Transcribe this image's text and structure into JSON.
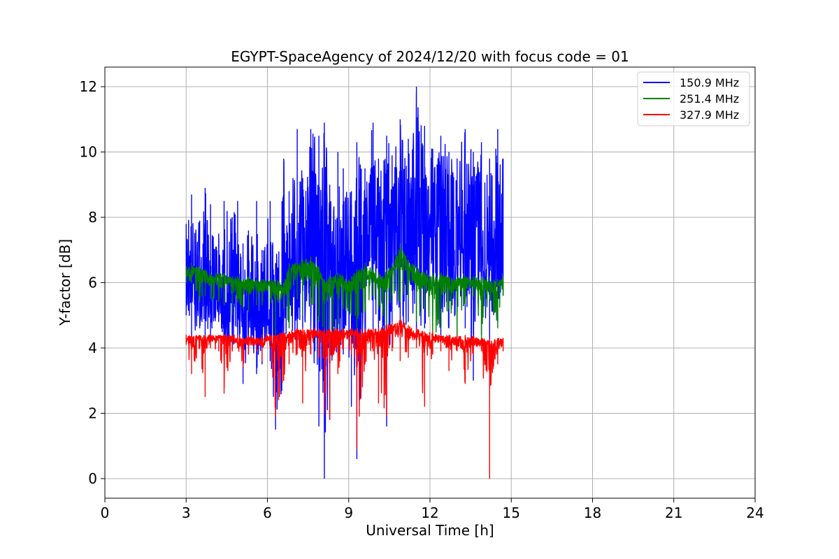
{
  "chart_data": {
    "type": "line",
    "title": "EGYPT-SpaceAgency of 2024/12/20 with focus code = 01",
    "xlabel": "Universal Time [h]",
    "ylabel": "Y-factor [dB]",
    "xlim": [
      0,
      24
    ],
    "ylim": [
      -0.6,
      12.6
    ],
    "xticks": [
      0,
      3,
      6,
      9,
      12,
      15,
      18,
      21,
      24
    ],
    "yticks": [
      0,
      2,
      4,
      6,
      8,
      10,
      12
    ],
    "grid": true,
    "legend_position": "top-right",
    "series": [
      {
        "name": "150.9 MHz",
        "color": "#0000ff",
        "x": [
          3.0,
          3.2,
          3.5,
          3.7,
          3.9,
          4.2,
          4.4,
          4.7,
          4.9,
          5.1,
          5.3,
          5.6,
          5.8,
          6.1,
          6.3,
          6.6,
          6.8,
          7.1,
          7.3,
          7.6,
          7.9,
          8.1,
          8.3,
          8.6,
          8.8,
          9.1,
          9.3,
          9.6,
          9.9,
          10.1,
          10.4,
          10.6,
          10.9,
          11.2,
          11.5,
          11.8,
          12.1,
          12.4,
          12.7,
          13.0,
          13.3,
          13.6,
          13.9,
          14.2,
          14.5,
          14.7
        ],
        "lower": [
          5.0,
          4.0,
          4.6,
          4.0,
          4.4,
          4.8,
          3.6,
          3.9,
          4.3,
          2.9,
          3.8,
          3.2,
          3.5,
          3.6,
          1.5,
          3.0,
          4.8,
          4.0,
          4.6,
          3.8,
          1.6,
          0.0,
          1.8,
          4.2,
          3.8,
          2.2,
          0.6,
          4.0,
          4.4,
          4.2,
          1.6,
          4.6,
          4.2,
          4.8,
          4.4,
          4.6,
          5.0,
          4.2,
          4.6,
          4.2,
          4.6,
          3.0,
          4.4,
          4.0,
          4.8,
          5.6
        ],
        "upper": [
          7.8,
          8.7,
          7.9,
          8.9,
          8.4,
          7.5,
          8.5,
          8.0,
          8.5,
          7.2,
          7.6,
          8.5,
          7.0,
          8.5,
          6.6,
          9.8,
          8.8,
          10.7,
          9.2,
          10.7,
          10.5,
          10.9,
          9.0,
          10.0,
          9.5,
          8.8,
          10.3,
          9.5,
          10.9,
          9.8,
          10.5,
          9.9,
          11.0,
          10.4,
          12.0,
          10.8,
          10.1,
          10.5,
          10.0,
          9.8,
          10.7,
          10.0,
          10.3,
          9.8,
          10.7,
          9.8
        ],
        "level": [
          6.2,
          6.0,
          5.9,
          5.7,
          5.6,
          5.7,
          5.6,
          5.5,
          5.4,
          5.2,
          5.2,
          5.1,
          5.2,
          5.1,
          5.3,
          5.4,
          6.2,
          6.8,
          6.9,
          7.2,
          7.0,
          7.3,
          6.8,
          6.6,
          6.5,
          6.4,
          7.2,
          7.4,
          7.6,
          7.6,
          7.8,
          7.7,
          7.6,
          7.9,
          7.8,
          7.7,
          7.6,
          7.5,
          7.4,
          7.3,
          7.2,
          7.0,
          7.1,
          6.9,
          7.0,
          7.1
        ]
      },
      {
        "name": "251.4 MHz",
        "color": "#008000",
        "x": [
          3.0,
          3.2,
          3.5,
          3.7,
          3.9,
          4.2,
          4.4,
          4.7,
          4.9,
          5.1,
          5.3,
          5.6,
          5.8,
          6.1,
          6.3,
          6.6,
          6.8,
          7.1,
          7.3,
          7.6,
          7.9,
          8.1,
          8.3,
          8.6,
          8.8,
          9.1,
          9.3,
          9.6,
          9.9,
          10.1,
          10.4,
          10.6,
          10.9,
          11.2,
          11.5,
          11.8,
          12.1,
          12.4,
          12.7,
          13.0,
          13.3,
          13.6,
          13.9,
          14.2,
          14.5,
          14.7
        ],
        "lower": [
          6.0,
          6.0,
          5.4,
          5.6,
          5.5,
          5.4,
          5.3,
          5.0,
          5.4,
          5.2,
          5.1,
          5.3,
          5.3,
          5.5,
          4.3,
          5.2,
          4.6,
          5.5,
          5.0,
          5.3,
          4.8,
          4.3,
          4.4,
          4.3,
          5.2,
          5.0,
          4.6,
          5.1,
          5.6,
          5.2,
          4.5,
          5.6,
          5.4,
          5.5,
          4.8,
          5.2,
          4.4,
          4.6,
          5.2,
          4.4,
          5.3,
          5.6,
          4.3,
          5.5,
          4.6,
          5.6
        ],
        "upper": [
          6.5,
          6.6,
          6.5,
          6.4,
          6.3,
          6.3,
          6.3,
          6.2,
          6.2,
          6.1,
          6.2,
          6.1,
          6.1,
          6.1,
          6.1,
          6.0,
          6.6,
          6.6,
          6.7,
          6.8,
          6.5,
          6.1,
          6.2,
          6.3,
          6.2,
          6.2,
          6.4,
          6.6,
          6.4,
          6.3,
          6.4,
          6.6,
          7.2,
          6.7,
          6.5,
          6.3,
          6.3,
          6.3,
          6.2,
          6.2,
          6.2,
          6.2,
          6.2,
          6.2,
          6.1,
          6.2
        ],
        "level": [
          6.3,
          6.3,
          6.3,
          6.2,
          6.1,
          6.1,
          6.1,
          6.0,
          6.0,
          5.9,
          5.9,
          5.9,
          5.9,
          5.9,
          5.8,
          5.8,
          6.3,
          6.4,
          6.4,
          6.5,
          6.2,
          5.9,
          5.9,
          6.0,
          6.0,
          6.0,
          6.2,
          6.2,
          6.2,
          6.1,
          6.1,
          6.3,
          6.8,
          6.4,
          6.2,
          6.1,
          6.0,
          6.0,
          6.0,
          6.0,
          6.0,
          6.0,
          5.9,
          5.9,
          5.9,
          6.0
        ]
      },
      {
        "name": "327.9 MHz",
        "color": "#ff0000",
        "x": [
          3.0,
          3.2,
          3.5,
          3.7,
          3.9,
          4.2,
          4.4,
          4.7,
          4.9,
          5.1,
          5.3,
          5.6,
          5.8,
          6.1,
          6.3,
          6.6,
          6.8,
          7.1,
          7.3,
          7.6,
          7.9,
          8.1,
          8.3,
          8.6,
          8.8,
          9.1,
          9.3,
          9.6,
          9.9,
          10.1,
          10.4,
          10.6,
          10.9,
          11.2,
          11.5,
          11.8,
          12.1,
          12.4,
          12.7,
          13.0,
          13.3,
          13.6,
          13.9,
          14.2,
          14.5,
          14.7
        ],
        "lower": [
          4.1,
          3.2,
          4.0,
          2.5,
          4.0,
          3.9,
          2.6,
          3.9,
          4.0,
          3.4,
          3.8,
          3.9,
          3.6,
          4.0,
          1.9,
          3.0,
          3.5,
          3.8,
          2.3,
          3.8,
          3.7,
          2.0,
          1.8,
          3.2,
          4.0,
          3.8,
          0.9,
          3.5,
          3.9,
          2.3,
          1.9,
          3.9,
          3.6,
          3.7,
          4.0,
          2.2,
          3.8,
          3.9,
          3.3,
          3.9,
          2.9,
          3.8,
          3.9,
          0.0,
          3.5,
          3.9
        ],
        "upper": [
          4.4,
          4.4,
          4.4,
          4.4,
          4.4,
          4.4,
          4.4,
          4.4,
          4.4,
          4.3,
          4.4,
          4.3,
          4.4,
          4.4,
          4.4,
          4.5,
          4.5,
          4.6,
          4.6,
          4.6,
          4.6,
          4.6,
          4.6,
          4.6,
          4.6,
          4.6,
          4.6,
          4.6,
          4.6,
          4.6,
          4.7,
          4.8,
          4.9,
          4.7,
          4.6,
          4.5,
          4.5,
          4.4,
          4.4,
          4.4,
          4.4,
          4.4,
          4.3,
          4.3,
          4.3,
          4.3
        ],
        "level": [
          4.3,
          4.3,
          4.3,
          4.3,
          4.3,
          4.3,
          4.3,
          4.3,
          4.2,
          4.2,
          4.2,
          4.2,
          4.2,
          4.3,
          4.3,
          4.3,
          4.4,
          4.4,
          4.4,
          4.4,
          4.4,
          4.4,
          4.4,
          4.4,
          4.4,
          4.4,
          4.4,
          4.4,
          4.4,
          4.4,
          4.5,
          4.6,
          4.7,
          4.5,
          4.4,
          4.3,
          4.3,
          4.3,
          4.2,
          4.2,
          4.2,
          4.2,
          4.1,
          4.1,
          4.1,
          4.2
        ]
      }
    ]
  }
}
